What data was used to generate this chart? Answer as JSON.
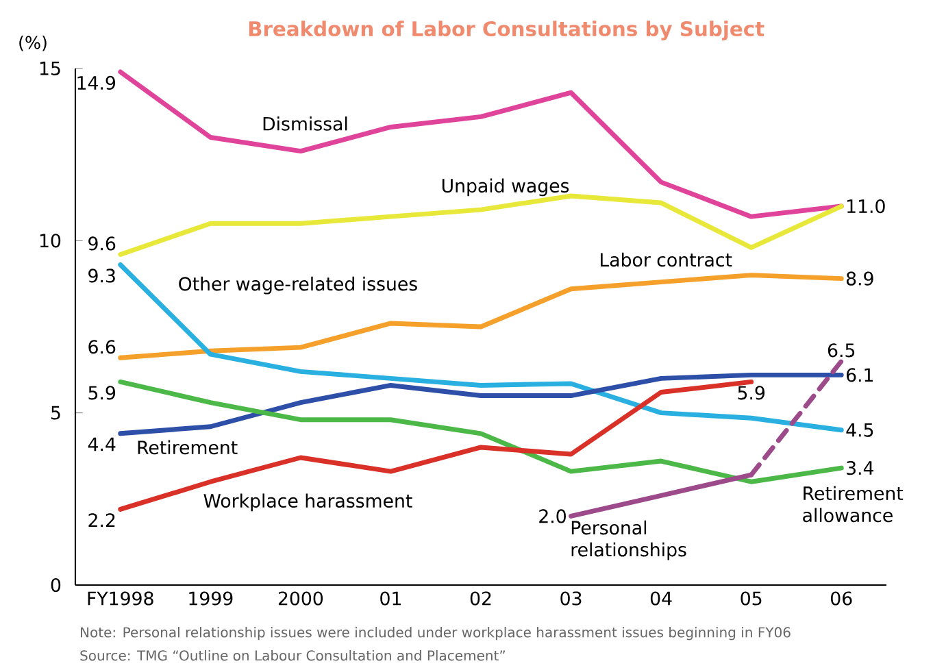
{
  "chart_data": {
    "type": "line",
    "title": "Breakdown of Labor Consultations by Subject",
    "ylabel": "(%)",
    "categories": [
      "FY1998",
      "1999",
      "2000",
      "01",
      "02",
      "03",
      "04",
      "05",
      "06"
    ],
    "ylim": [
      0,
      15
    ],
    "yticks": [
      0,
      5,
      10,
      15
    ],
    "marker": "none",
    "series": [
      {
        "name": "Dismissal",
        "color": "#e0449a",
        "line_style": "solid",
        "values": [
          14.9,
          13.0,
          12.6,
          13.3,
          13.6,
          14.3,
          11.7,
          10.7,
          11.0
        ],
        "value_labels": [
          "14.9",
          null,
          null,
          null,
          null,
          null,
          null,
          null,
          null
        ]
      },
      {
        "name": "Unpaid wages",
        "color": "#e8e83a",
        "line_style": "solid",
        "values": [
          9.6,
          10.5,
          10.5,
          10.7,
          10.9,
          11.3,
          11.1,
          9.8,
          11.0
        ],
        "value_labels": [
          "9.6",
          null,
          null,
          null,
          null,
          null,
          null,
          null,
          "11.0"
        ]
      },
      {
        "name": "Labor contract",
        "color": "#f5a02a",
        "line_style": "solid",
        "values": [
          6.6,
          6.8,
          6.9,
          7.6,
          7.5,
          8.6,
          8.8,
          9.0,
          8.9
        ],
        "value_labels": [
          "6.6",
          null,
          null,
          null,
          null,
          null,
          null,
          null,
          "8.9"
        ]
      },
      {
        "name": "Other wage-related issues",
        "color": "#2ab0e0",
        "line_style": "solid",
        "values": [
          9.3,
          6.7,
          6.2,
          6.0,
          5.8,
          5.85,
          5.0,
          4.85,
          4.5
        ],
        "value_labels": [
          "9.3",
          null,
          null,
          null,
          null,
          null,
          null,
          null,
          "4.5"
        ]
      },
      {
        "name": "Retirement",
        "color": "#2e4fa8",
        "line_style": "solid",
        "values": [
          4.4,
          4.6,
          5.3,
          5.8,
          5.5,
          5.5,
          6.0,
          6.1,
          6.1
        ],
        "value_labels": [
          "4.4",
          null,
          null,
          null,
          null,
          null,
          null,
          null,
          "6.1"
        ]
      },
      {
        "name": "Retirement allowance",
        "color": "#4bb848",
        "line_style": "solid",
        "values": [
          5.9,
          5.3,
          4.8,
          4.8,
          4.4,
          3.3,
          3.6,
          3.0,
          3.4
        ],
        "value_labels": [
          "5.9",
          null,
          null,
          null,
          null,
          null,
          null,
          null,
          "3.4"
        ]
      },
      {
        "name": "Workplace harassment",
        "color": "#d93028",
        "line_style": "solid",
        "values": [
          2.2,
          3.0,
          3.7,
          3.3,
          4.0,
          3.8,
          5.6,
          5.9,
          null
        ],
        "value_labels": [
          "2.2",
          null,
          null,
          null,
          null,
          null,
          null,
          "5.9",
          null
        ]
      },
      {
        "name": "Personal relationships",
        "color": "#9c4a8a",
        "line_style": "solid",
        "values": [
          null,
          null,
          null,
          null,
          null,
          2.0,
          2.6,
          3.2,
          null
        ],
        "value_labels": [
          null,
          null,
          null,
          null,
          null,
          "2.0",
          null,
          null,
          null
        ]
      },
      {
        "color": "#9c4a8a",
        "line_style": "dashed",
        "values": [
          null,
          null,
          null,
          null,
          null,
          null,
          null,
          3.2,
          6.5
        ],
        "value_labels": [
          null,
          null,
          null,
          null,
          null,
          null,
          null,
          null,
          "6.5"
        ]
      }
    ],
    "annotations": [
      "Note: Personal relationship issues were included under workplace harassment issues beginning in FY06",
      "Source: TMG “Outline on Labour Consultation and Placement”"
    ]
  }
}
